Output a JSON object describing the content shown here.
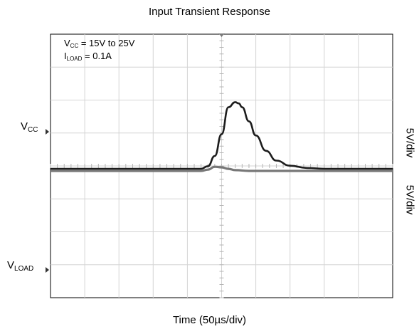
{
  "chart_data": {
    "type": "line",
    "title": "Input Transient Response",
    "xlabel": "Time (50µs/div)",
    "x_divisions": 10,
    "y_divisions": 8,
    "grid": true,
    "channels": [
      {
        "name": "V",
        "sub": "CC",
        "scale_label": "5V/div",
        "color": "#1c1c1c"
      },
      {
        "name": "V",
        "sub": "LOAD",
        "scale_label": "5V/div",
        "color": "#777777"
      }
    ],
    "annotations": [
      {
        "main": "V",
        "sub": "CC",
        "rest": " = 15V to 25V"
      },
      {
        "main": "I",
        "sub": "LOAD",
        "rest": " = 0.1A"
      }
    ],
    "series": [
      {
        "name": "VCC",
        "x_div": [
          0,
          4.4,
          4.6,
          4.8,
          5.0,
          5.2,
          5.4,
          5.5,
          5.6,
          5.8,
          6.0,
          6.3,
          6.6,
          7.0,
          7.5,
          8.0,
          10
        ],
        "y_div": [
          0,
          0,
          0.1,
          0.5,
          1.35,
          2.4,
          2.6,
          2.55,
          2.4,
          1.85,
          1.3,
          0.7,
          0.32,
          0.12,
          0.03,
          0,
          0
        ]
      },
      {
        "name": "VLOAD",
        "x_div": [
          0,
          4.4,
          4.6,
          4.8,
          5.0,
          5.2,
          5.4,
          5.8,
          10
        ],
        "y_div": [
          0,
          0,
          0.05,
          0.16,
          0.14,
          0.08,
          0.03,
          0,
          0
        ]
      }
    ]
  }
}
